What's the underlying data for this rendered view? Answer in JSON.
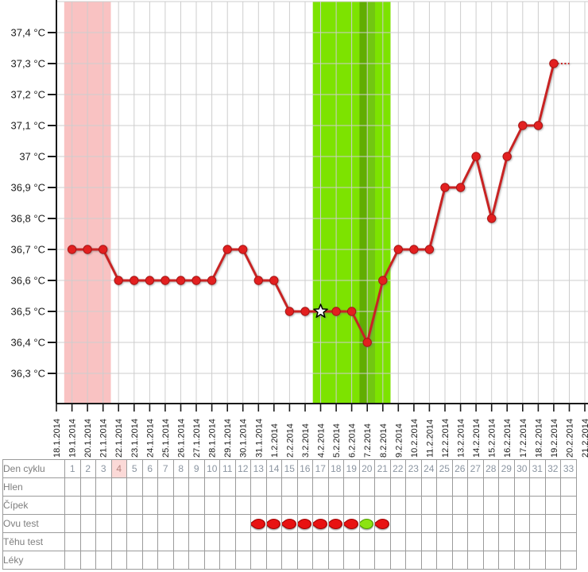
{
  "chart_data": {
    "type": "line",
    "title": "",
    "grid": true,
    "y_axis": {
      "min": 36.3,
      "max": 37.5,
      "tick_step": 0.1,
      "tick_values": [
        37.4,
        37.3,
        37.2,
        37.1,
        37.0,
        36.9,
        36.8,
        36.7,
        36.6,
        36.5,
        36.4,
        36.3
      ],
      "tick_labels": [
        "37,4 °C",
        "37,3 °C",
        "37,2 °C",
        "37,1 °C",
        "37 °C",
        "36,9 °C",
        "36,8 °C",
        "36,7 °C",
        "36,6 °C",
        "36,5 °C",
        "36,4 °C",
        "36,3 °C"
      ]
    },
    "x_axis": {
      "dates": [
        "18.1.2014",
        "19.1.2014",
        "20.1.2014",
        "21.1.2014",
        "22.1.2014",
        "23.1.2014",
        "24.1.2014",
        "25.1.2014",
        "26.1.2014",
        "27.1.2014",
        "28.1.2014",
        "29.1.2014",
        "30.1.2014",
        "31.1.2014",
        "1.2.2014",
        "2.2.2014",
        "3.2.2014",
        "4.2.2014",
        "5.2.2014",
        "6.2.2014",
        "7.2.2014",
        "8.2.2014",
        "9.2.2014",
        "10.2.2014",
        "11.2.2014",
        "12.2.2014",
        "13.2.2014",
        "14.2.2014",
        "15.2.2014",
        "16.2.2014",
        "17.2.2014",
        "18.2.2014",
        "19.2.2014",
        "20.2.2014",
        "21.2.2014"
      ]
    },
    "series": [
      {
        "name": "basal-temperature",
        "color": "#c92323",
        "point_color": "#e22020",
        "point_edge_color": "#a61515",
        "values": [
          null,
          36.7,
          36.7,
          36.7,
          36.6,
          36.6,
          36.6,
          36.6,
          36.6,
          36.6,
          36.6,
          36.7,
          36.7,
          36.6,
          36.6,
          36.5,
          36.5,
          36.5,
          36.5,
          36.5,
          36.4,
          36.6,
          36.7,
          36.7,
          36.7,
          36.9,
          36.9,
          37.0,
          36.8,
          37.0,
          37.1,
          37.1,
          37.3,
          null,
          null
        ]
      }
    ],
    "star_marker": {
      "date": "4.2.2014",
      "value": 36.5
    },
    "projection": {
      "from_date": "19.2.2014",
      "to_date": "20.2.2014",
      "value": 37.3,
      "style": "dotted"
    },
    "bands": [
      {
        "name": "menstruation",
        "from": "19.1.2014",
        "to": "21.1.2014",
        "color": "#f9c2c2"
      },
      {
        "name": "fertile-window",
        "from": "4.2.2014",
        "to": "8.2.2014",
        "color": "#7de300"
      },
      {
        "name": "fertile-peak",
        "from": "7.2.2014",
        "to": "7.2.2014",
        "color": "#61ad02",
        "color2": "#72c711"
      }
    ],
    "colors": {
      "grid": "#cdcdcd",
      "axis": "#1a1a1a"
    }
  },
  "table": {
    "day_count": 33,
    "highlighted_day": 4,
    "rows": [
      {
        "key": "den",
        "label": "Den cyklu"
      },
      {
        "key": "hlen",
        "label": "Hlen"
      },
      {
        "key": "cipek",
        "label": "Čípek"
      },
      {
        "key": "ovu",
        "label": "Ovu test"
      },
      {
        "key": "tehu",
        "label": "Těhu test"
      },
      {
        "key": "leky",
        "label": "Léky"
      }
    ],
    "ovu_tests": [
      {
        "day": 13,
        "result": "negative"
      },
      {
        "day": 14,
        "result": "negative"
      },
      {
        "day": 15,
        "result": "negative"
      },
      {
        "day": 16,
        "result": "negative"
      },
      {
        "day": 17,
        "result": "negative"
      },
      {
        "day": 18,
        "result": "negative"
      },
      {
        "day": 19,
        "result": "negative"
      },
      {
        "day": 20,
        "result": "positive"
      },
      {
        "day": 21,
        "result": "negative"
      }
    ]
  }
}
